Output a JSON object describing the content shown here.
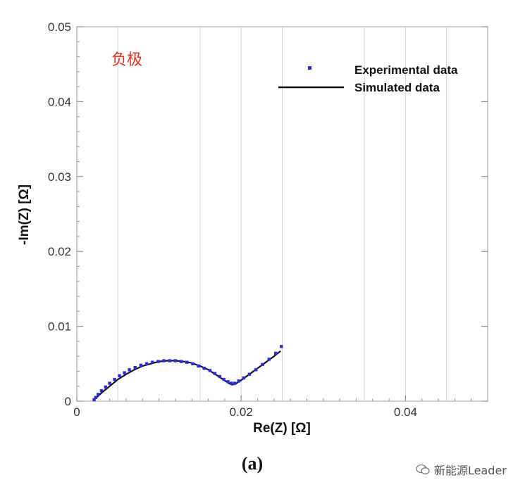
{
  "chart_data": {
    "type": "scatter",
    "xlabel": "Re(Z) [Ω]",
    "ylabel": "-Im(Z) [Ω]",
    "xlim": [
      0,
      0.05
    ],
    "ylim": [
      0,
      0.05
    ],
    "x_ticks": [
      "0",
      "0.02",
      "0.04"
    ],
    "y_ticks": [
      "0",
      "0.01",
      "0.02",
      "0.03",
      "0.04",
      "0.05"
    ],
    "annotation": "负极",
    "legend_position": "top-right",
    "series": [
      {
        "name": "Experimental data",
        "kind": "points",
        "color": "#2b2bd9",
        "x": [
          0.0021,
          0.0023,
          0.0026,
          0.003,
          0.0035,
          0.004,
          0.0046,
          0.0052,
          0.0058,
          0.0064,
          0.0071,
          0.0078,
          0.0085,
          0.0092,
          0.0099,
          0.0106,
          0.0113,
          0.012,
          0.0127,
          0.0134,
          0.0141,
          0.0148,
          0.0155,
          0.0162,
          0.0168,
          0.0174,
          0.0179,
          0.0184,
          0.0188,
          0.0192,
          0.0197,
          0.0203,
          0.021,
          0.0218,
          0.0226,
          0.0234,
          0.0242,
          0.0249
        ],
        "y": [
          0.0002,
          0.0005,
          0.0009,
          0.0014,
          0.0019,
          0.0024,
          0.0029,
          0.0034,
          0.0038,
          0.0042,
          0.0045,
          0.0048,
          0.005,
          0.0052,
          0.0053,
          0.0054,
          0.0054,
          0.0054,
          0.0053,
          0.0052,
          0.005,
          0.0047,
          0.0044,
          0.0041,
          0.0037,
          0.0033,
          0.0029,
          0.0026,
          0.0024,
          0.0024,
          0.0027,
          0.0031,
          0.0036,
          0.0042,
          0.0049,
          0.0056,
          0.0064,
          0.0073
        ]
      },
      {
        "name": "Simulated data",
        "kind": "line",
        "color": "#111111",
        "x": [
          0.002,
          0.0025,
          0.003,
          0.004,
          0.005,
          0.006,
          0.007,
          0.008,
          0.009,
          0.01,
          0.011,
          0.012,
          0.013,
          0.014,
          0.015,
          0.016,
          0.017,
          0.0178,
          0.0185,
          0.0189,
          0.0193,
          0.02,
          0.021,
          0.022,
          0.023,
          0.024,
          0.0248
        ],
        "y": [
          0.0001,
          0.0006,
          0.0011,
          0.002,
          0.0029,
          0.0036,
          0.0042,
          0.0047,
          0.005,
          0.0053,
          0.0054,
          0.0054,
          0.0053,
          0.0051,
          0.0047,
          0.0042,
          0.0035,
          0.0029,
          0.0024,
          0.0022,
          0.0023,
          0.0028,
          0.0036,
          0.0044,
          0.0052,
          0.006,
          0.0067
        ]
      }
    ]
  },
  "panel_label": "(a)",
  "watermark": "新能源Leader"
}
